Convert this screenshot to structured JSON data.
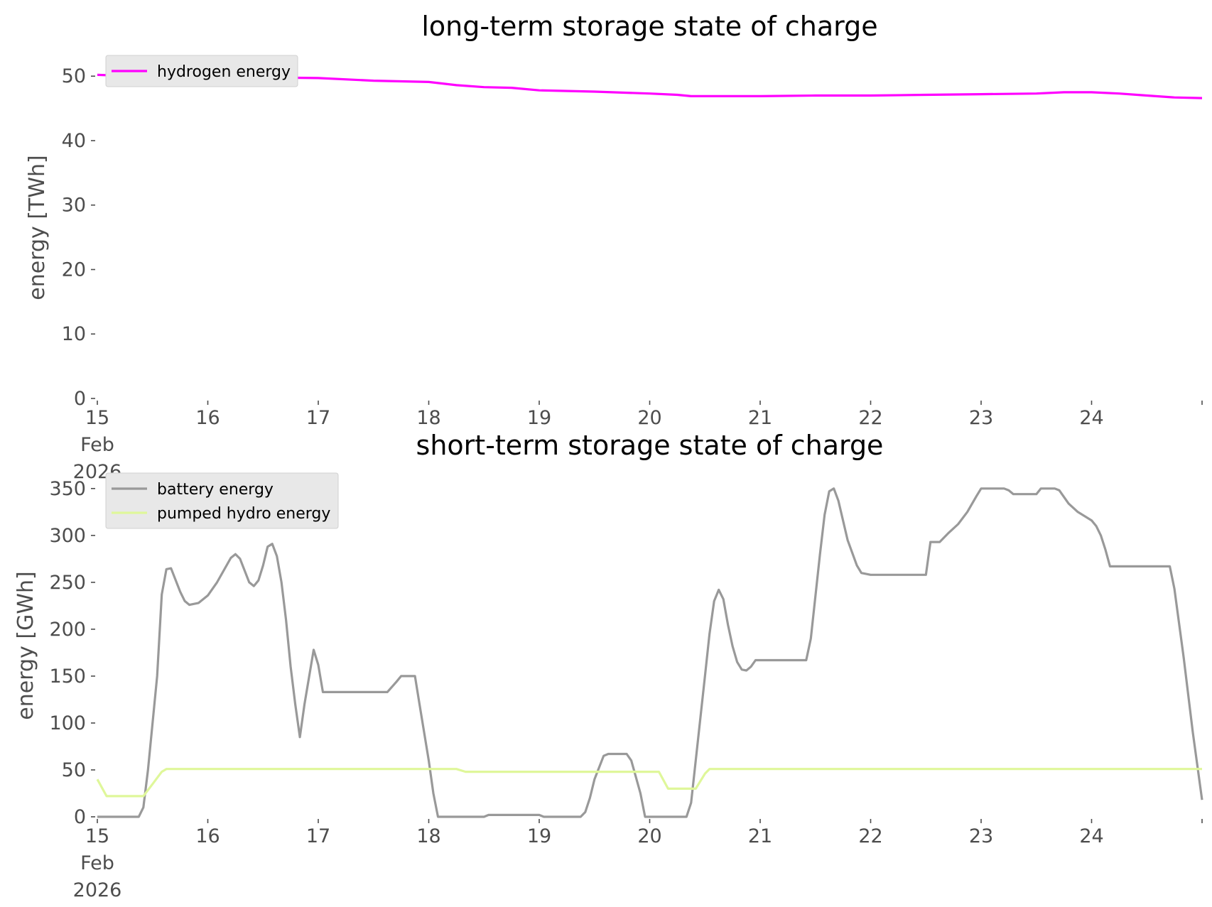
{
  "chart_data": [
    {
      "type": "line",
      "title": "long-term storage state of charge",
      "ylabel": "energy [TWh]",
      "xlabel": "",
      "x_range": [
        "2026-02-15",
        "2026-02-25"
      ],
      "ylim": [
        0,
        53
      ],
      "yticks": [
        0,
        10,
        20,
        30,
        40,
        50
      ],
      "xticks": [
        {
          "date": "2026-02-15",
          "label": [
            "15",
            "Feb",
            "2026"
          ]
        },
        {
          "date": "2026-02-16",
          "label": [
            "16"
          ]
        },
        {
          "date": "2026-02-17",
          "label": [
            "17"
          ]
        },
        {
          "date": "2026-02-18",
          "label": [
            "18"
          ]
        },
        {
          "date": "2026-02-19",
          "label": [
            "19"
          ]
        },
        {
          "date": "2026-02-20",
          "label": [
            "20"
          ]
        },
        {
          "date": "2026-02-21",
          "label": [
            "21"
          ]
        },
        {
          "date": "2026-02-22",
          "label": [
            "22"
          ]
        },
        {
          "date": "2026-02-23",
          "label": [
            "23"
          ]
        },
        {
          "date": "2026-02-24",
          "label": [
            "24"
          ]
        }
      ],
      "grid": false,
      "legend_position": "top-left",
      "series": [
        {
          "name": "hydrogen energy",
          "color": "#ff00ff",
          "points": [
            [
              "2026-02-15 00:00",
              50.2
            ],
            [
              "2026-02-15 12:00",
              49.9
            ],
            [
              "2026-02-16 00:00",
              49.8
            ],
            [
              "2026-02-16 12:00",
              49.8
            ],
            [
              "2026-02-17 00:00",
              49.7
            ],
            [
              "2026-02-17 12:00",
              49.3
            ],
            [
              "2026-02-17 18:00",
              49.2
            ],
            [
              "2026-02-18 00:00",
              49.1
            ],
            [
              "2026-02-18 06:00",
              48.6
            ],
            [
              "2026-02-18 12:00",
              48.3
            ],
            [
              "2026-02-18 18:00",
              48.2
            ],
            [
              "2026-02-19 00:00",
              47.8
            ],
            [
              "2026-02-19 12:00",
              47.6
            ],
            [
              "2026-02-20 00:00",
              47.3
            ],
            [
              "2026-02-20 06:00",
              47.1
            ],
            [
              "2026-02-20 09:00",
              46.9
            ],
            [
              "2026-02-21 00:00",
              46.9
            ],
            [
              "2026-02-21 12:00",
              47.0
            ],
            [
              "2026-02-22 00:00",
              47.0
            ],
            [
              "2026-02-22 12:00",
              47.1
            ],
            [
              "2026-02-23 00:00",
              47.2
            ],
            [
              "2026-02-23 12:00",
              47.3
            ],
            [
              "2026-02-23 18:00",
              47.5
            ],
            [
              "2026-02-24 00:00",
              47.5
            ],
            [
              "2026-02-24 06:00",
              47.3
            ],
            [
              "2026-02-24 12:00",
              47.0
            ],
            [
              "2026-02-24 18:00",
              46.7
            ],
            [
              "2026-02-25 00:00",
              46.6
            ]
          ]
        }
      ]
    },
    {
      "type": "line",
      "title": "short-term storage state of charge",
      "ylabel": "energy [GWh]",
      "xlabel": "",
      "x_range": [
        "2026-02-15",
        "2026-02-25"
      ],
      "ylim": [
        0,
        365
      ],
      "yticks": [
        0,
        50,
        100,
        150,
        200,
        250,
        300,
        350
      ],
      "xticks": [
        {
          "date": "2026-02-15",
          "label": [
            "15",
            "Feb",
            "2026"
          ]
        },
        {
          "date": "2026-02-16",
          "label": [
            "16"
          ]
        },
        {
          "date": "2026-02-17",
          "label": [
            "17"
          ]
        },
        {
          "date": "2026-02-18",
          "label": [
            "18"
          ]
        },
        {
          "date": "2026-02-19",
          "label": [
            "19"
          ]
        },
        {
          "date": "2026-02-20",
          "label": [
            "20"
          ]
        },
        {
          "date": "2026-02-21",
          "label": [
            "21"
          ]
        },
        {
          "date": "2026-02-22",
          "label": [
            "22"
          ]
        },
        {
          "date": "2026-02-23",
          "label": [
            "23"
          ]
        },
        {
          "date": "2026-02-24",
          "label": [
            "24"
          ]
        }
      ],
      "grid": false,
      "legend_position": "top-left",
      "series": [
        {
          "name": "battery energy",
          "color": "#999999",
          "points": [
            [
              "2026-02-15 00:00",
              0
            ],
            [
              "2026-02-15 06:00",
              0
            ],
            [
              "2026-02-15 09:00",
              0
            ],
            [
              "2026-02-15 10:00",
              10
            ],
            [
              "2026-02-15 11:00",
              50
            ],
            [
              "2026-02-15 13:00",
              150
            ],
            [
              "2026-02-15 14:00",
              237
            ],
            [
              "2026-02-15 15:00",
              264
            ],
            [
              "2026-02-15 16:00",
              265
            ],
            [
              "2026-02-15 18:00",
              240
            ],
            [
              "2026-02-15 19:00",
              230
            ],
            [
              "2026-02-15 20:00",
              226
            ],
            [
              "2026-02-15 22:00",
              228
            ],
            [
              "2026-02-16 00:00",
              236
            ],
            [
              "2026-02-16 02:00",
              250
            ],
            [
              "2026-02-16 05:00",
              276
            ],
            [
              "2026-02-16 06:00",
              280
            ],
            [
              "2026-02-16 07:00",
              275
            ],
            [
              "2026-02-16 09:00",
              250
            ],
            [
              "2026-02-16 10:00",
              246
            ],
            [
              "2026-02-16 11:00",
              252
            ],
            [
              "2026-02-16 12:00",
              268
            ],
            [
              "2026-02-16 13:00",
              288
            ],
            [
              "2026-02-16 14:00",
              291
            ],
            [
              "2026-02-16 15:00",
              278
            ],
            [
              "2026-02-16 16:00",
              250
            ],
            [
              "2026-02-16 17:00",
              210
            ],
            [
              "2026-02-16 18:00",
              160
            ],
            [
              "2026-02-16 19:00",
              120
            ],
            [
              "2026-02-16 20:00",
              85
            ],
            [
              "2026-02-16 21:00",
              120
            ],
            [
              "2026-02-16 23:00",
              178
            ],
            [
              "2026-02-17 00:00",
              162
            ],
            [
              "2026-02-17 01:00",
              133
            ],
            [
              "2026-02-17 15:00",
              133
            ],
            [
              "2026-02-17 17:00",
              144
            ],
            [
              "2026-02-17 18:00",
              150
            ],
            [
              "2026-02-17 21:00",
              150
            ],
            [
              "2026-02-17 22:00",
              120
            ],
            [
              "2026-02-18 00:00",
              60
            ],
            [
              "2026-02-18 01:00",
              25
            ],
            [
              "2026-02-18 02:00",
              0
            ],
            [
              "2026-02-18 12:00",
              0
            ],
            [
              "2026-02-18 13:00",
              2
            ],
            [
              "2026-02-19 00:00",
              2
            ],
            [
              "2026-02-19 01:00",
              0
            ],
            [
              "2026-02-19 09:00",
              0
            ],
            [
              "2026-02-19 10:00",
              5
            ],
            [
              "2026-02-19 11:00",
              20
            ],
            [
              "2026-02-19 12:00",
              40
            ],
            [
              "2026-02-19 14:00",
              65
            ],
            [
              "2026-02-19 15:00",
              67
            ],
            [
              "2026-02-19 19:00",
              67
            ],
            [
              "2026-02-19 20:00",
              60
            ],
            [
              "2026-02-19 22:00",
              25
            ],
            [
              "2026-02-19 23:00",
              0
            ],
            [
              "2026-02-20 08:00",
              0
            ],
            [
              "2026-02-20 09:00",
              15
            ],
            [
              "2026-02-20 10:00",
              60
            ],
            [
              "2026-02-20 12:00",
              150
            ],
            [
              "2026-02-20 13:00",
              195
            ],
            [
              "2026-02-20 14:00",
              230
            ],
            [
              "2026-02-20 15:00",
              242
            ],
            [
              "2026-02-20 16:00",
              232
            ],
            [
              "2026-02-20 17:00",
              205
            ],
            [
              "2026-02-20 18:00",
              182
            ],
            [
              "2026-02-20 19:00",
              165
            ],
            [
              "2026-02-20 20:00",
              157
            ],
            [
              "2026-02-20 21:00",
              156
            ],
            [
              "2026-02-20 22:00",
              160
            ],
            [
              "2026-02-20 23:00",
              167
            ],
            [
              "2026-02-21 10:00",
              167
            ],
            [
              "2026-02-21 11:00",
              190
            ],
            [
              "2026-02-21 13:00",
              280
            ],
            [
              "2026-02-21 14:00",
              322
            ],
            [
              "2026-02-21 15:00",
              347
            ],
            [
              "2026-02-21 16:00",
              350
            ],
            [
              "2026-02-21 17:00",
              337
            ],
            [
              "2026-02-21 19:00",
              295
            ],
            [
              "2026-02-21 21:00",
              268
            ],
            [
              "2026-02-21 22:00",
              260
            ],
            [
              "2026-02-22 00:00",
              258
            ],
            [
              "2026-02-22 12:00",
              258
            ],
            [
              "2026-02-22 13:00",
              293
            ],
            [
              "2026-02-22 15:00",
              293
            ],
            [
              "2026-02-22 17:00",
              303
            ],
            [
              "2026-02-22 19:00",
              312
            ],
            [
              "2026-02-22 21:00",
              325
            ],
            [
              "2026-02-22 23:00",
              342
            ],
            [
              "2026-02-23 00:00",
              350
            ],
            [
              "2026-02-23 05:00",
              350
            ],
            [
              "2026-02-23 06:00",
              348
            ],
            [
              "2026-02-23 07:00",
              344
            ],
            [
              "2026-02-23 12:00",
              344
            ],
            [
              "2026-02-23 13:00",
              350
            ],
            [
              "2026-02-23 16:00",
              350
            ],
            [
              "2026-02-23 17:00",
              348
            ],
            [
              "2026-02-23 19:00",
              334
            ],
            [
              "2026-02-23 21:00",
              325
            ],
            [
              "2026-02-24 00:00",
              316
            ],
            [
              "2026-02-24 01:00",
              310
            ],
            [
              "2026-02-24 02:00",
              300
            ],
            [
              "2026-02-24 03:00",
              285
            ],
            [
              "2026-02-24 04:00",
              267
            ],
            [
              "2026-02-24 17:00",
              267
            ],
            [
              "2026-02-24 18:00",
              243
            ],
            [
              "2026-02-24 20:00",
              170
            ],
            [
              "2026-02-24 22:00",
              90
            ],
            [
              "2026-02-25 00:00",
              18
            ]
          ]
        },
        {
          "name": "pumped hydro energy",
          "color": "#dff79a",
          "points": [
            [
              "2026-02-15 00:00",
              40
            ],
            [
              "2026-02-15 02:00",
              22
            ],
            [
              "2026-02-15 10:00",
              22
            ],
            [
              "2026-02-15 12:00",
              35
            ],
            [
              "2026-02-15 14:00",
              48
            ],
            [
              "2026-02-15 15:00",
              51
            ],
            [
              "2026-02-18 06:00",
              51
            ],
            [
              "2026-02-18 08:00",
              48
            ],
            [
              "2026-02-20 02:00",
              48
            ],
            [
              "2026-02-20 04:00",
              30
            ],
            [
              "2026-02-20 10:00",
              30
            ],
            [
              "2026-02-20 12:00",
              46
            ],
            [
              "2026-02-20 13:00",
              51
            ],
            [
              "2026-02-25 00:00",
              51
            ]
          ]
        }
      ]
    }
  ]
}
